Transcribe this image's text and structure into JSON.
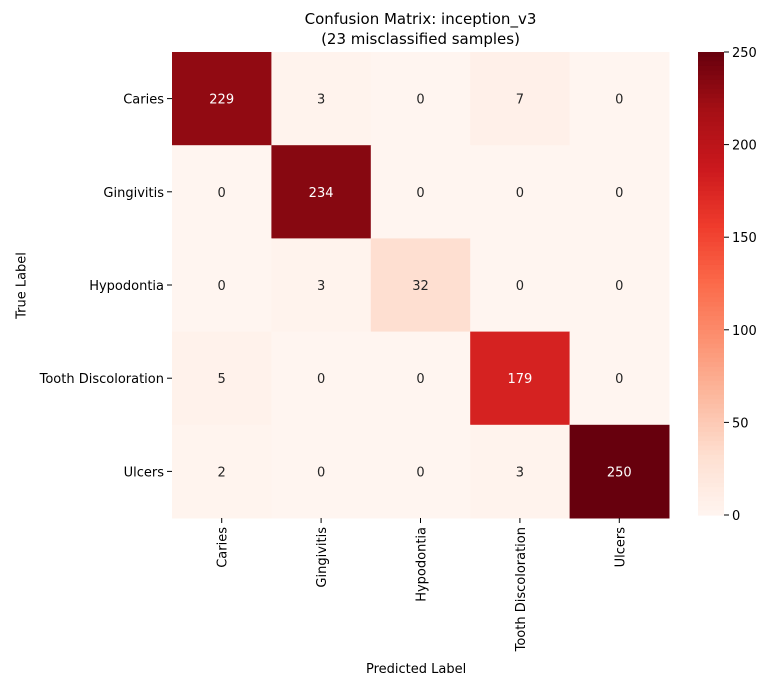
{
  "chart_data": {
    "type": "heatmap",
    "title_line1": "Confusion Matrix: inception_v3",
    "title_line2": "(23 misclassified samples)",
    "xlabel": "Predicted Label",
    "ylabel": "True Label",
    "x_categories": [
      "Caries",
      "Gingivitis",
      "Hypodontia",
      "Tooth Discoloration",
      "Ulcers"
    ],
    "y_categories": [
      "Caries",
      "Gingivitis",
      "Hypodontia",
      "Tooth Discoloration",
      "Ulcers"
    ],
    "values": [
      [
        229,
        3,
        0,
        7,
        0
      ],
      [
        0,
        234,
        0,
        0,
        0
      ],
      [
        0,
        3,
        32,
        0,
        0
      ],
      [
        5,
        0,
        0,
        179,
        0
      ],
      [
        2,
        0,
        0,
        3,
        250
      ]
    ],
    "colorbar": {
      "min": 0,
      "max": 250,
      "ticks": [
        0,
        50,
        100,
        150,
        200,
        250
      ],
      "colormap": "Reds"
    }
  }
}
